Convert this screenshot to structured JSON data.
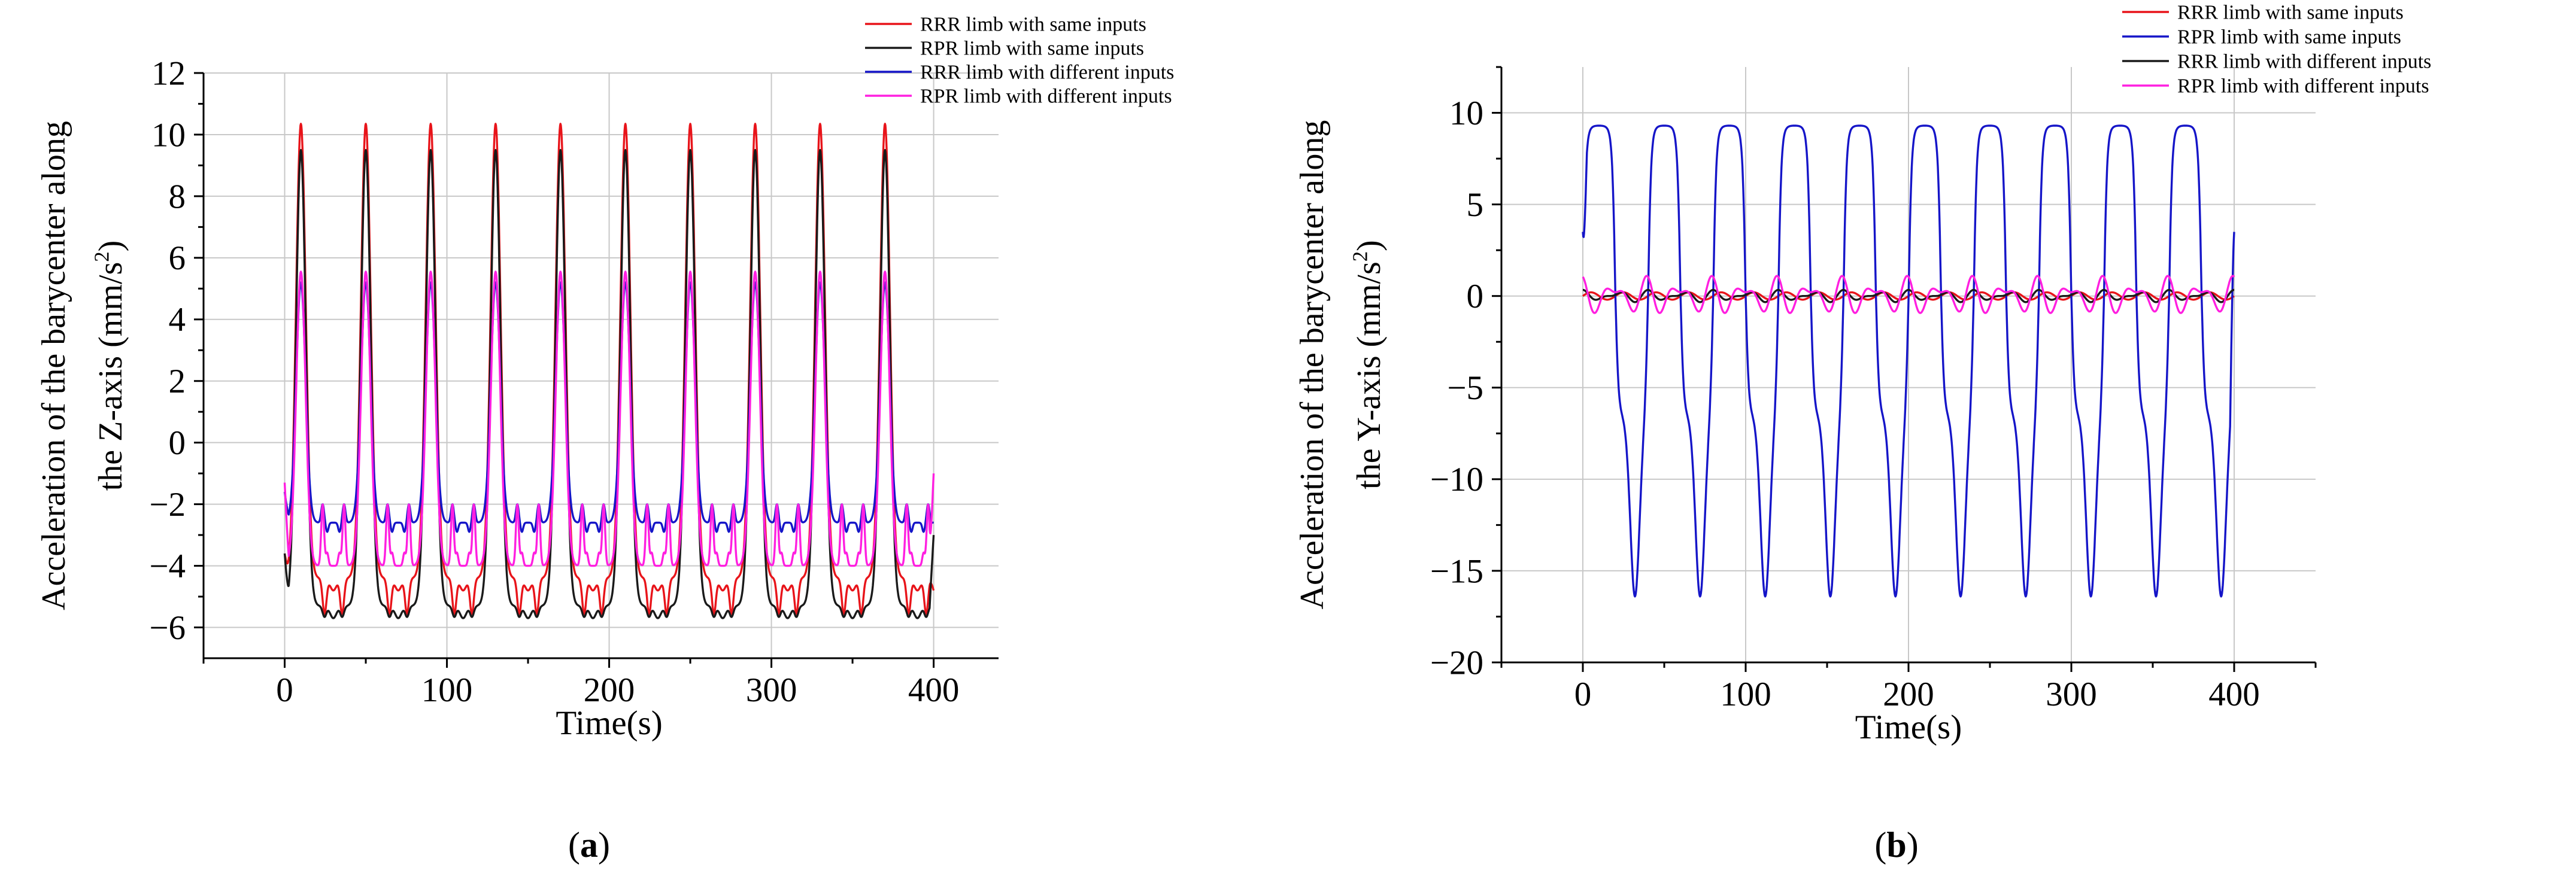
{
  "chart_data": [
    {
      "type": "line",
      "panel_label": "(a)",
      "title": "",
      "xlabel": "Time(s)",
      "ylabel_line1": "Acceleration of the barycenter along",
      "ylabel_line2_pre": "the Z-axis (mm/s",
      "ylabel_sup": "2",
      "ylabel_post": ")",
      "xlim": [
        -50,
        440
      ],
      "ylim": [
        -7,
        12
      ],
      "xticks": [
        0,
        100,
        200,
        300,
        400
      ],
      "yticks": [
        -6,
        -4,
        -2,
        0,
        2,
        4,
        6,
        8,
        10,
        12
      ],
      "grid": true,
      "legend_position": "top-right",
      "period_s": 40,
      "series": [
        {
          "name": "RRR limb with same inputs",
          "color": "#e8141a",
          "wave": "same-peak",
          "peak": 10.35,
          "trough": -4.8,
          "dip_depth": -5.7,
          "start": -3.6,
          "end": -4.8
        },
        {
          "name": "RPR limb with same inputs",
          "color": "#1a1a1a",
          "wave": "same-peak",
          "peak": 9.5,
          "trough": -5.7,
          "dip_depth": -5.7,
          "start": -3.6,
          "end": -3.0
        },
        {
          "name": "RRR limb with different inputs",
          "color": "#1515c8",
          "wave": "diff-peak",
          "peak": 5.2,
          "trough": -2.0,
          "center": -2.6,
          "dip_depth": -3.1,
          "start": -1.6,
          "end": -2.6
        },
        {
          "name": "RPR limb with different inputs",
          "color": "#ff1fe0",
          "wave": "diff-peak",
          "peak": 5.55,
          "trough": -2.0,
          "center": -4.0,
          "dip_depth": -3.3,
          "start": -1.3,
          "end": -1.0
        }
      ]
    },
    {
      "type": "line",
      "panel_label": "(b)",
      "title": "",
      "xlabel": "Time(s)",
      "ylabel_line1": "Acceleration of the barycenter along",
      "ylabel_line2_pre": "the Y-axis (mm/s",
      "ylabel_sup": "2",
      "ylabel_post": ")",
      "xlim": [
        -50,
        450
      ],
      "ylim": [
        -20,
        12.5
      ],
      "xticks": [
        0,
        100,
        200,
        300,
        400
      ],
      "yticks": [
        -20,
        -15,
        -10,
        -5,
        0,
        5,
        10
      ],
      "grid": true,
      "legend_position": "top-right",
      "period_s": 40,
      "series": [
        {
          "name": "RRR limb with same inputs",
          "color": "#e8141a",
          "wave": "flat",
          "amplitude": 0.2
        },
        {
          "name": "RPR limb with same inputs",
          "color": "#1515c8",
          "wave": "plateau",
          "peak": 9.3,
          "trough": -16.4,
          "start": 3.5,
          "end": 3.5
        },
        {
          "name": "RRR limb with different inputs",
          "color": "#1a1a1a",
          "wave": "small",
          "amplitude": 0.35
        },
        {
          "name": "RPR limb with different inputs",
          "color": "#ff1fe0",
          "wave": "small",
          "amplitude": 1.1
        }
      ]
    }
  ]
}
